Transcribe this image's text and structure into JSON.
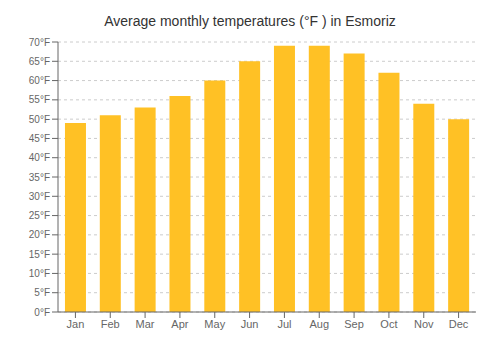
{
  "chart_data": {
    "type": "bar",
    "title": "Average monthly temperatures (°F ) in Esmoriz",
    "categories": [
      "Jan",
      "Feb",
      "Mar",
      "Apr",
      "May",
      "Jun",
      "Jul",
      "Aug",
      "Sep",
      "Oct",
      "Nov",
      "Dec"
    ],
    "values": [
      49,
      51,
      53,
      56,
      60,
      65,
      69,
      69,
      67,
      62,
      54,
      50
    ],
    "color": "#FFC125",
    "ylim": [
      0,
      70
    ],
    "yticks": [
      {
        "value": 0,
        "label": "0°F"
      },
      {
        "value": 5,
        "label": "5°F"
      },
      {
        "value": 10,
        "label": "10°F"
      },
      {
        "value": 15,
        "label": "15°F"
      },
      {
        "value": 20,
        "label": "20°F"
      },
      {
        "value": 25,
        "label": "25°F"
      },
      {
        "value": 30,
        "label": "30°F"
      },
      {
        "value": 35,
        "label": "35°F"
      },
      {
        "value": 40,
        "label": "40°F"
      },
      {
        "value": 45,
        "label": "45°F"
      },
      {
        "value": 50,
        "label": "50°F"
      },
      {
        "value": 55,
        "label": "55°F"
      },
      {
        "value": 60,
        "label": "60°F"
      },
      {
        "value": 65,
        "label": "65°F"
      },
      {
        "value": 70,
        "label": "70°F"
      }
    ],
    "grid": true
  }
}
